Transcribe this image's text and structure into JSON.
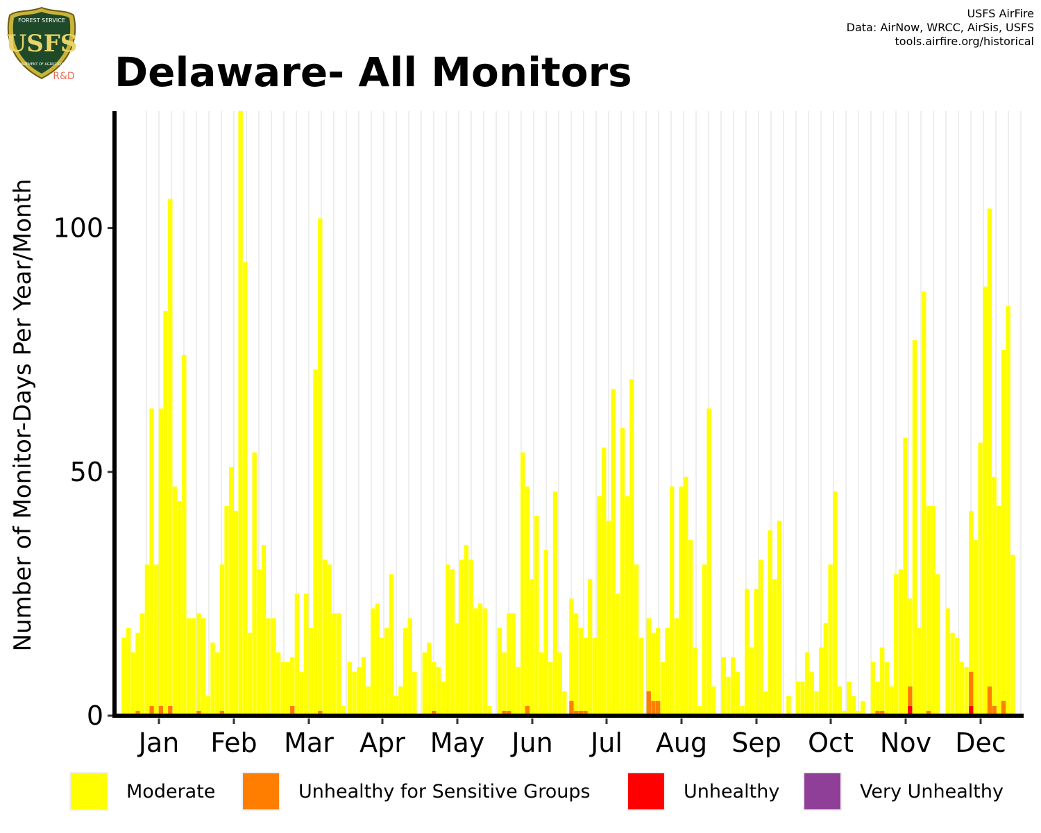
{
  "header": {
    "title": "Delaware- All Monitors",
    "credits": [
      "USFS AirFire",
      "Data: AirNow, WRCC, AirSis, USFS",
      "tools.airfire.org/historical"
    ],
    "logo_text": {
      "top": "FOREST SERVICE",
      "initials": "USFS",
      "bottom": "DEPARTMENT OF AGRICULTURE",
      "suffix": "R&D"
    }
  },
  "colors": {
    "moderate": "#FFFF00",
    "usg": "#FF7E00",
    "unhealthy": "#FF0000",
    "very_unhealthy": "#8F3F97"
  },
  "chart_data": {
    "type": "bar",
    "stacked": true,
    "title": "Delaware- All Monitors",
    "ylabel": "Number of Monitor-Days Per Year/Month",
    "xlabel": "",
    "ylim": [
      0,
      124
    ],
    "yticks": [
      0,
      50,
      100
    ],
    "grid": "vertical",
    "legend_position": "bottom",
    "categories": [
      "Jan",
      "Feb",
      "Mar",
      "Apr",
      "May",
      "Jun",
      "Jul",
      "Aug",
      "Sep",
      "Oct",
      "Nov",
      "Dec"
    ],
    "series": [
      {
        "name": "Moderate",
        "color": "#FFFF00",
        "values": [
          [
            16,
            18,
            13,
            17,
            21,
            31,
            63,
            31,
            63,
            83,
            106,
            47,
            44,
            74,
            20,
            20
          ],
          [
            21,
            20,
            4,
            15,
            13,
            31,
            43,
            51,
            42,
            124,
            93,
            17,
            54,
            30,
            35,
            20
          ],
          [
            20,
            13,
            11,
            11,
            12,
            25,
            9,
            25,
            18,
            71,
            102,
            32,
            31,
            21,
            21,
            2
          ],
          [
            11,
            9,
            10,
            12,
            6,
            22,
            23,
            16,
            18,
            29,
            4,
            6,
            18,
            20,
            9
          ],
          [
            13,
            15,
            11,
            10,
            7,
            31,
            30,
            19,
            32,
            35,
            32,
            22,
            23,
            22,
            2
          ],
          [
            18,
            13,
            21,
            21,
            10,
            54,
            47,
            28,
            41,
            13,
            34,
            11,
            46,
            13,
            5
          ],
          [
            24,
            21,
            18,
            16,
            28,
            16,
            45,
            55,
            40,
            67,
            25,
            59,
            45,
            69,
            31,
            16
          ],
          [
            20,
            17,
            18,
            11,
            18,
            47,
            20,
            47,
            49,
            36,
            14,
            2,
            31,
            63,
            6
          ],
          [
            12,
            8,
            12,
            9,
            2,
            26,
            14,
            26,
            32,
            5,
            38,
            28,
            40,
            0,
            4
          ],
          [
            7,
            7,
            13,
            9,
            5,
            14,
            19,
            31,
            46,
            6,
            1,
            7,
            4,
            1,
            3
          ],
          [
            11,
            7,
            14,
            11,
            6,
            29,
            30,
            57,
            24,
            77,
            18,
            87,
            43,
            43,
            29
          ],
          [
            22,
            17,
            16,
            11,
            10,
            42,
            36,
            56,
            88,
            104,
            49,
            43,
            75,
            84,
            33
          ]
        ]
      },
      {
        "name": "Unhealthy for Sensitive Groups",
        "color": "#FF7E00",
        "values": [
          [
            0,
            0,
            0,
            1,
            0,
            0,
            2,
            0,
            2,
            0,
            2,
            0,
            0,
            0,
            0,
            0
          ],
          [
            1,
            0,
            0,
            0,
            0,
            1,
            0,
            0,
            0,
            0,
            0,
            0,
            0,
            0,
            0,
            0
          ],
          [
            0,
            0,
            0,
            0,
            2,
            0,
            0,
            0,
            0,
            0,
            1,
            0,
            0,
            0,
            0,
            0
          ],
          [
            0,
            0,
            0,
            0,
            0,
            0,
            0,
            0,
            0,
            0,
            0,
            0,
            0,
            0,
            0
          ],
          [
            0,
            0,
            1,
            0,
            0,
            0,
            0,
            0,
            0,
            0,
            0,
            0,
            0,
            0,
            0
          ],
          [
            0,
            1,
            1,
            0,
            0,
            0,
            2,
            0,
            0,
            0,
            0,
            0,
            0,
            0,
            0
          ],
          [
            3,
            1,
            1,
            1,
            0,
            0,
            0,
            0,
            0,
            0,
            0,
            0,
            0,
            0,
            0,
            0
          ],
          [
            5,
            3,
            3,
            0,
            0,
            0,
            0,
            0,
            0,
            0,
            0,
            0,
            0,
            0,
            0
          ],
          [
            0,
            0,
            0,
            0,
            0,
            0,
            0,
            0,
            0,
            0,
            0,
            0,
            0,
            0,
            0
          ],
          [
            0,
            0,
            0,
            0,
            0,
            0,
            0,
            0,
            0,
            0,
            0,
            0,
            0,
            0,
            0
          ],
          [
            0,
            1,
            1,
            0,
            0,
            0,
            0,
            0,
            4,
            0,
            0,
            0,
            1,
            0,
            0
          ],
          [
            0,
            0,
            0,
            0,
            0,
            7,
            0,
            0,
            0,
            6,
            2,
            0,
            3,
            0,
            0
          ]
        ]
      },
      {
        "name": "Unhealthy",
        "color": "#FF0000",
        "values": [
          [
            0,
            0,
            0,
            0,
            0,
            0,
            0,
            0,
            0,
            0,
            0,
            0,
            0,
            0,
            0,
            0
          ],
          [
            0,
            0,
            0,
            0,
            0,
            0,
            0,
            0,
            0,
            0,
            0,
            0,
            0,
            0,
            0,
            0
          ],
          [
            0,
            0,
            0,
            0,
            0,
            0,
            0,
            0,
            0,
            0,
            0,
            0,
            0,
            0,
            0,
            0
          ],
          [
            0,
            0,
            0,
            0,
            0,
            0,
            0,
            0,
            0,
            0,
            0,
            0,
            0,
            0,
            0
          ],
          [
            0,
            0,
            0,
            0,
            0,
            0,
            0,
            0,
            0,
            0,
            0,
            0,
            0,
            0,
            0
          ],
          [
            0,
            0,
            0,
            0,
            0,
            0,
            0,
            0,
            0,
            0,
            0,
            0,
            0,
            0,
            0
          ],
          [
            0,
            0,
            0,
            0,
            0,
            0,
            0,
            0,
            0,
            0,
            0,
            0,
            0,
            0,
            0,
            0
          ],
          [
            0,
            0,
            0,
            0,
            0,
            0,
            0,
            0,
            0,
            0,
            0,
            0,
            0,
            0,
            0
          ],
          [
            0,
            0,
            0,
            0,
            0,
            0,
            0,
            0,
            0,
            0,
            0,
            0,
            0,
            0,
            0
          ],
          [
            0,
            0,
            0,
            0,
            0,
            0,
            0,
            0,
            0,
            0,
            0,
            0,
            0,
            0,
            0
          ],
          [
            0,
            0,
            0,
            0,
            0,
            0,
            0,
            0,
            2,
            0,
            0,
            0,
            0,
            0,
            0
          ],
          [
            0,
            0,
            0,
            0,
            0,
            2,
            0,
            0,
            0,
            0,
            0,
            0,
            0,
            0,
            0
          ]
        ]
      },
      {
        "name": "Very Unhealthy",
        "color": "#8F3F97",
        "values": [
          [
            0,
            0,
            0,
            0,
            0,
            0,
            0,
            0,
            0,
            0,
            0,
            0,
            0,
            0,
            0,
            0
          ],
          [
            0,
            0,
            0,
            0,
            0,
            0,
            0,
            0,
            0,
            0,
            0,
            0,
            0,
            0,
            0,
            0
          ],
          [
            0,
            0,
            0,
            0,
            0,
            0,
            0,
            0,
            0,
            0,
            0,
            0,
            0,
            0,
            0,
            0
          ],
          [
            0,
            0,
            0,
            0,
            0,
            0,
            0,
            0,
            0,
            0,
            0,
            0,
            0,
            0,
            0
          ],
          [
            0,
            0,
            0,
            0,
            0,
            0,
            0,
            0,
            0,
            0,
            0,
            0,
            0,
            0,
            0
          ],
          [
            0,
            0,
            0,
            0,
            0,
            0,
            0,
            0,
            0,
            0,
            0,
            0,
            0,
            0,
            0
          ],
          [
            0,
            0,
            0,
            0,
            0,
            0,
            0,
            0,
            0,
            0,
            0,
            0,
            0,
            0,
            0,
            0
          ],
          [
            0,
            0,
            0,
            0,
            0,
            0,
            0,
            0,
            0,
            0,
            0,
            0,
            0,
            0,
            0
          ],
          [
            0,
            0,
            0,
            0,
            0,
            0,
            0,
            0,
            0,
            0,
            0,
            0,
            0,
            0,
            0
          ],
          [
            0,
            0,
            0,
            0,
            0,
            0,
            0,
            0,
            0,
            0,
            0,
            0,
            0,
            0,
            0
          ],
          [
            0,
            0,
            0,
            0,
            0,
            0,
            0,
            0,
            0,
            0,
            0,
            0,
            0,
            0,
            0
          ],
          [
            0,
            0,
            0,
            0,
            0,
            0,
            0,
            0,
            0,
            0,
            0,
            0,
            0,
            0,
            0
          ]
        ]
      }
    ]
  },
  "legend": {
    "items": [
      {
        "label": "Moderate",
        "color": "#FFFF00"
      },
      {
        "label": "Unhealthy for Sensitive Groups",
        "color": "#FF7E00"
      },
      {
        "label": "Unhealthy",
        "color": "#FF0000"
      },
      {
        "label": "Very Unhealthy",
        "color": "#8F3F97"
      }
    ]
  }
}
